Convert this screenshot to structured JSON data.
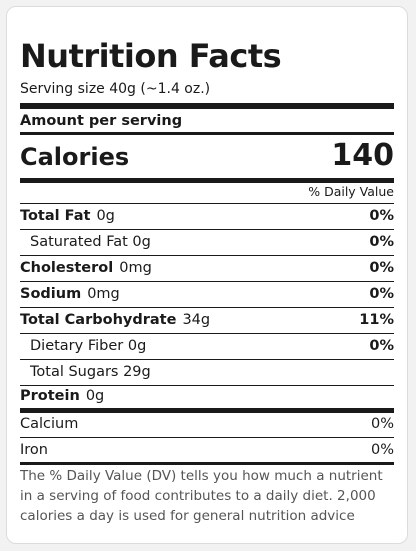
{
  "label": {
    "title": "Nutrition Facts",
    "serving_size": "Serving size 40g (~1.4 oz.)",
    "amount_per_serving": "Amount per serving",
    "calories_label": "Calories",
    "calories_value": "140",
    "daily_value_header": "% Daily Value"
  },
  "nutrients": [
    {
      "name": "Total Fat",
      "amount": "0g",
      "dv": "0%"
    },
    {
      "text": "Saturated Fat 0g",
      "dv": "0%"
    },
    {
      "name": "Cholesterol",
      "amount": "0mg",
      "dv": "0%"
    },
    {
      "name": "Sodium",
      "amount": "0mg",
      "dv": "0%"
    },
    {
      "name": "Total Carbohydrate",
      "amount": "34g",
      "dv": "11%"
    },
    {
      "text": "Dietary Fiber 0g",
      "dv": "0%"
    },
    {
      "text": "Total Sugars 29g"
    },
    {
      "name": "Protein",
      "amount": "0g"
    }
  ],
  "minerals": [
    {
      "name": "Calcium",
      "dv": "0%"
    },
    {
      "name": "Iron",
      "dv": "0%"
    }
  ],
  "footnote": "The % Daily Value (DV) tells you how much a nutrient in a serving of food contributes to a daily diet. 2,000 calories a day is used for general nutrition advice"
}
